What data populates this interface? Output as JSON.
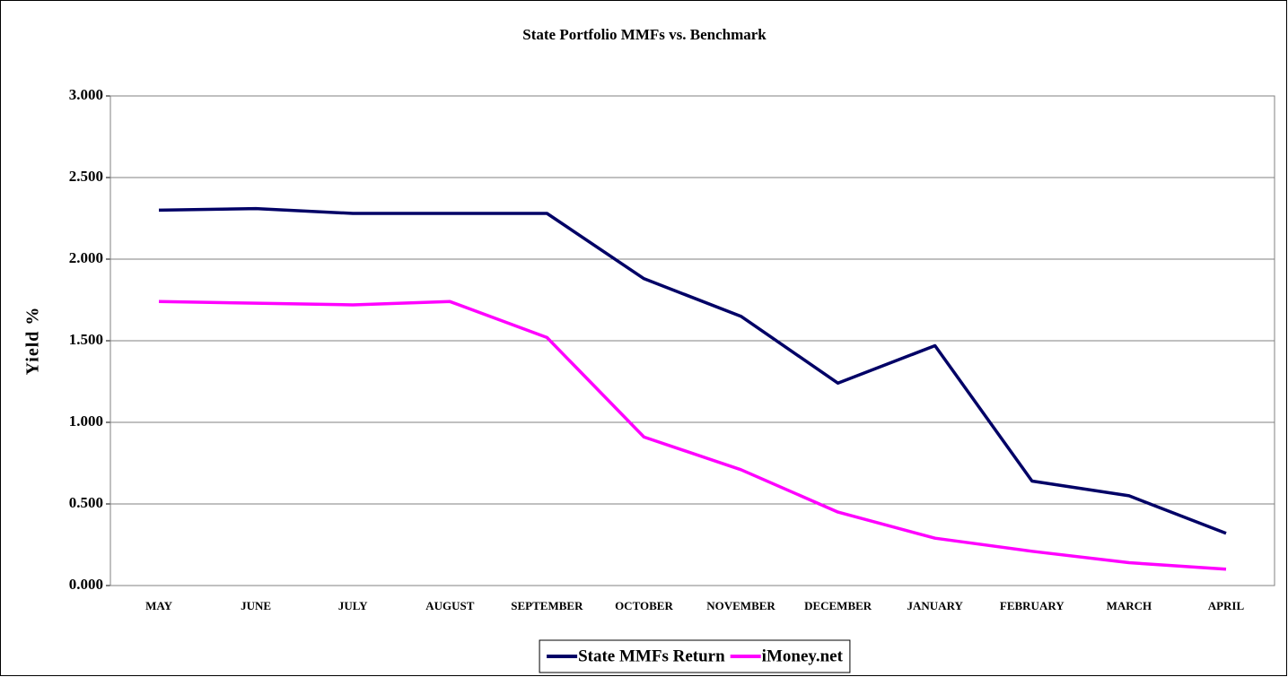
{
  "chart_data": {
    "type": "line",
    "title": "State Portfolio MMFs vs. Benchmark",
    "y_label": "Yield %",
    "categories": [
      "MAY",
      "JUNE",
      "JULY",
      "AUGUST",
      "SEPTEMBER",
      "OCTOBER",
      "NOVEMBER",
      "DECEMBER",
      "JANUARY",
      "FEBRUARY",
      "MARCH",
      "APRIL"
    ],
    "series": [
      {
        "name": "State MMFs Return",
        "color": "#000066",
        "values": [
          2.3,
          2.31,
          2.28,
          2.28,
          2.28,
          1.88,
          1.65,
          1.24,
          1.47,
          0.64,
          0.55,
          0.32
        ]
      },
      {
        "name": "iMoney.net",
        "color": "#ff00ff",
        "values": [
          1.74,
          1.73,
          1.72,
          1.74,
          1.52,
          0.91,
          0.71,
          0.45,
          0.29,
          0.21,
          0.14,
          0.1
        ]
      }
    ],
    "ylim": [
      0,
      3
    ],
    "yticks": [
      {
        "value": 0,
        "label": "0.000"
      },
      {
        "value": 0.5,
        "label": "0.500"
      },
      {
        "value": 1,
        "label": "1.000"
      },
      {
        "value": 1.5,
        "label": "1.500"
      },
      {
        "value": 2,
        "label": "2.000"
      },
      {
        "value": 2.5,
        "label": "2.500"
      },
      {
        "value": 3,
        "label": "3.000"
      }
    ],
    "grid": true,
    "legend_position": "bottom"
  }
}
